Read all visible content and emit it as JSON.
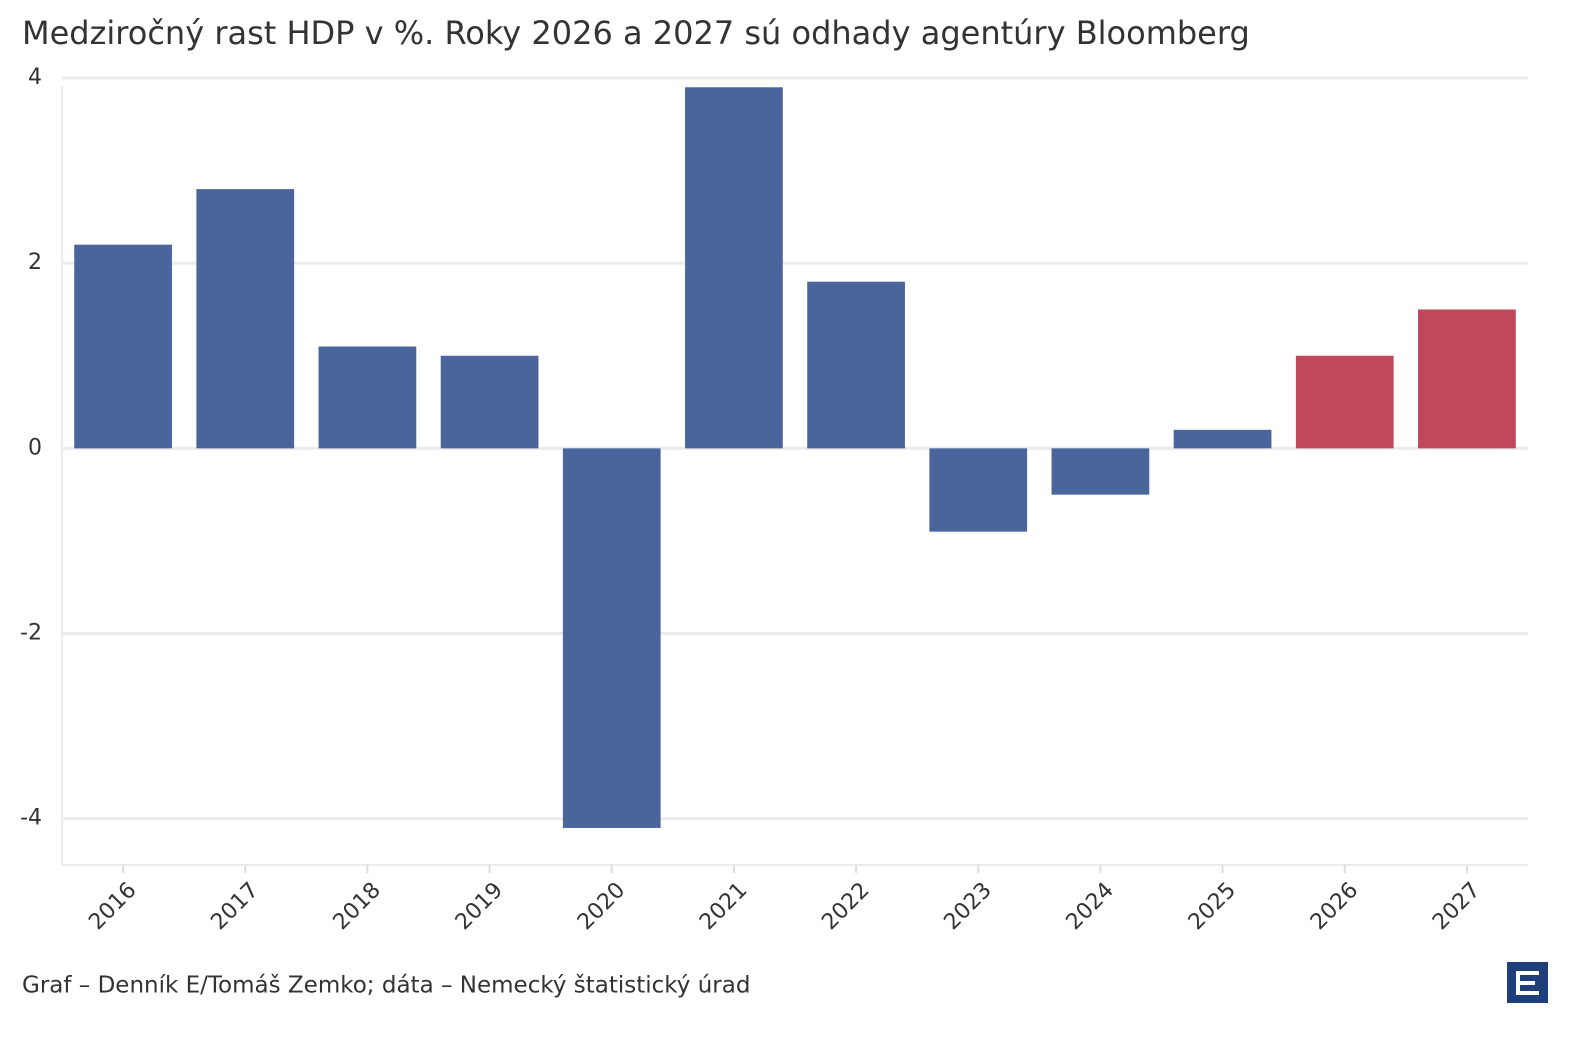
{
  "chart_data": {
    "type": "bar",
    "title": "Medziročný rast HDP v %. Roky 2026 a 2027 sú odhady agentúry Bloomberg",
    "categories": [
      "2016",
      "2017",
      "2018",
      "2019",
      "2020",
      "2021",
      "2022",
      "2023",
      "2024",
      "2025",
      "2026",
      "2027"
    ],
    "values": [
      2.2,
      2.8,
      1.1,
      1.0,
      -4.1,
      3.9,
      1.8,
      -0.9,
      -0.5,
      0.2,
      1.0,
      1.5
    ],
    "colors": [
      "#4a659c",
      "#4a659c",
      "#4a659c",
      "#4a659c",
      "#4a659c",
      "#4a659c",
      "#4a659c",
      "#4a659c",
      "#4a659c",
      "#4a659c",
      "#c0485a",
      "#c0485a"
    ],
    "ylim": [
      -4.5,
      4.0
    ],
    "yticks": [
      -4,
      -2,
      0,
      2,
      4
    ],
    "grid": true,
    "source": "Graf – Denník E/Tomáš Zemko; dáta – Nemecký štatistický úrad"
  }
}
